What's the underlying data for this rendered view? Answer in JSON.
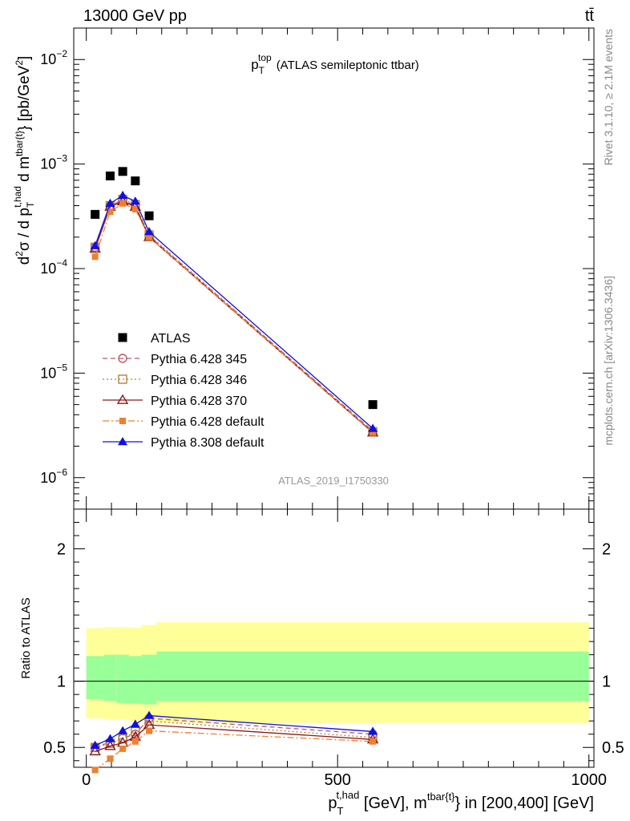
{
  "header": {
    "beam_label": "13000 GeV pp",
    "process_label": "tt̄"
  },
  "side_labels": {
    "rivet": "Rivet 3.1.10, ≥ 2.1M events",
    "site": "mcplots.cern.ch [arXiv:1306.3436]"
  },
  "watermark": "ATLAS_2019_I1750330",
  "colors": {
    "ATLAS": "#000000",
    "Pythia 6.428 345": "#c0566a",
    "Pythia 6.428 346": "#b8823a",
    "Pythia 6.428 370": "#8b1a1a",
    "Pythia 6.428 default": "#f07f2f",
    "Pythia 8.308 default": "#1010e0",
    "band_inner": "#99ff99",
    "band_outer": "#ffff99"
  },
  "chart_data": [
    {
      "type": "scatter",
      "panel": "main",
      "title": "p_T^top (ATLAS semileptonic ttbar)",
      "ylabel": "d²σ / d p_T^{t,had} d m^{tbar{t}} [pb/GeV²]",
      "yscale": "log",
      "ylim": [
        5e-07,
        0.02
      ],
      "xlim": [
        -25,
        1010
      ],
      "legend_position": "middle-left",
      "x": [
        17.5,
        47.5,
        72.5,
        97.5,
        125,
        570
      ],
      "series": [
        {
          "name": "ATLAS",
          "marker": "square",
          "values": [
            0.00033,
            0.00077,
            0.00085,
            0.00069,
            0.00032,
            5e-06
          ]
        },
        {
          "name": "Pythia 6.428 345",
          "marker": "circle-open",
          "line": "dashed",
          "values": [
            0.00016,
            0.0004,
            0.00045,
            0.0004,
            0.000205,
            2.8e-06
          ]
        },
        {
          "name": "Pythia 6.428 346",
          "marker": "square-open",
          "line": "dotted",
          "values": [
            0.00016,
            0.0004,
            0.00046,
            0.00041,
            0.00021,
            2.75e-06
          ]
        },
        {
          "name": "Pythia 6.428 370",
          "marker": "triangle-open",
          "line": "solid",
          "values": [
            0.000155,
            0.00039,
            0.00044,
            0.00039,
            0.0002,
            2.7e-06
          ]
        },
        {
          "name": "Pythia 6.428 default",
          "marker": "square-small",
          "line": "dashdot",
          "values": [
            0.00013,
            0.00035,
            0.00042,
            0.00037,
            0.0002,
            2.7e-06
          ]
        },
        {
          "name": "Pythia 8.308 default",
          "marker": "triangle",
          "line": "solid",
          "values": [
            0.000165,
            0.00042,
            0.0005,
            0.00044,
            0.000225,
            2.95e-06
          ]
        }
      ]
    },
    {
      "type": "line",
      "panel": "ratio",
      "ylabel": "Ratio to ATLAS",
      "xlabel": "p_T^{t,had} [GeV], m^{tbar{t}} in [200,400] [GeV]",
      "ylim": [
        0.35,
        2.3
      ],
      "xlim": [
        -25,
        1010
      ],
      "yticks": [
        "0.5",
        "1",
        "2"
      ],
      "xticks": [
        "0",
        "500",
        "1000"
      ],
      "x": [
        17.5,
        47.5,
        72.5,
        97.5,
        125,
        570
      ],
      "reference": 1.0,
      "band_edges": [
        0,
        35,
        60,
        85,
        110,
        140,
        1000
      ],
      "band_inner": {
        "low": [
          0.865,
          0.85,
          0.835,
          0.83,
          0.825,
          0.85
        ],
        "high": [
          1.19,
          1.2,
          1.2,
          1.19,
          1.2,
          1.225
        ]
      },
      "band_outer": {
        "low": [
          0.72,
          0.71,
          0.71,
          0.7,
          0.7,
          0.685
        ],
        "high": [
          1.4,
          1.41,
          1.41,
          1.405,
          1.425,
          1.445
        ]
      },
      "series": [
        {
          "name": "Pythia 6.428 345",
          "values": [
            0.5,
            0.54,
            0.57,
            0.6,
            0.72,
            0.6
          ]
        },
        {
          "name": "Pythia 6.428 346",
          "values": [
            0.5,
            0.53,
            0.565,
            0.62,
            0.7,
            0.575
          ]
        },
        {
          "name": "Pythia 6.428 370",
          "values": [
            0.47,
            0.51,
            0.535,
            0.58,
            0.67,
            0.56
          ]
        },
        {
          "name": "Pythia 6.428 default",
          "values": [
            0.33,
            0.415,
            0.49,
            0.545,
            0.625,
            0.545
          ]
        },
        {
          "name": "Pythia 8.308 default",
          "values": [
            0.515,
            0.565,
            0.625,
            0.675,
            0.74,
            0.62
          ]
        }
      ]
    }
  ]
}
